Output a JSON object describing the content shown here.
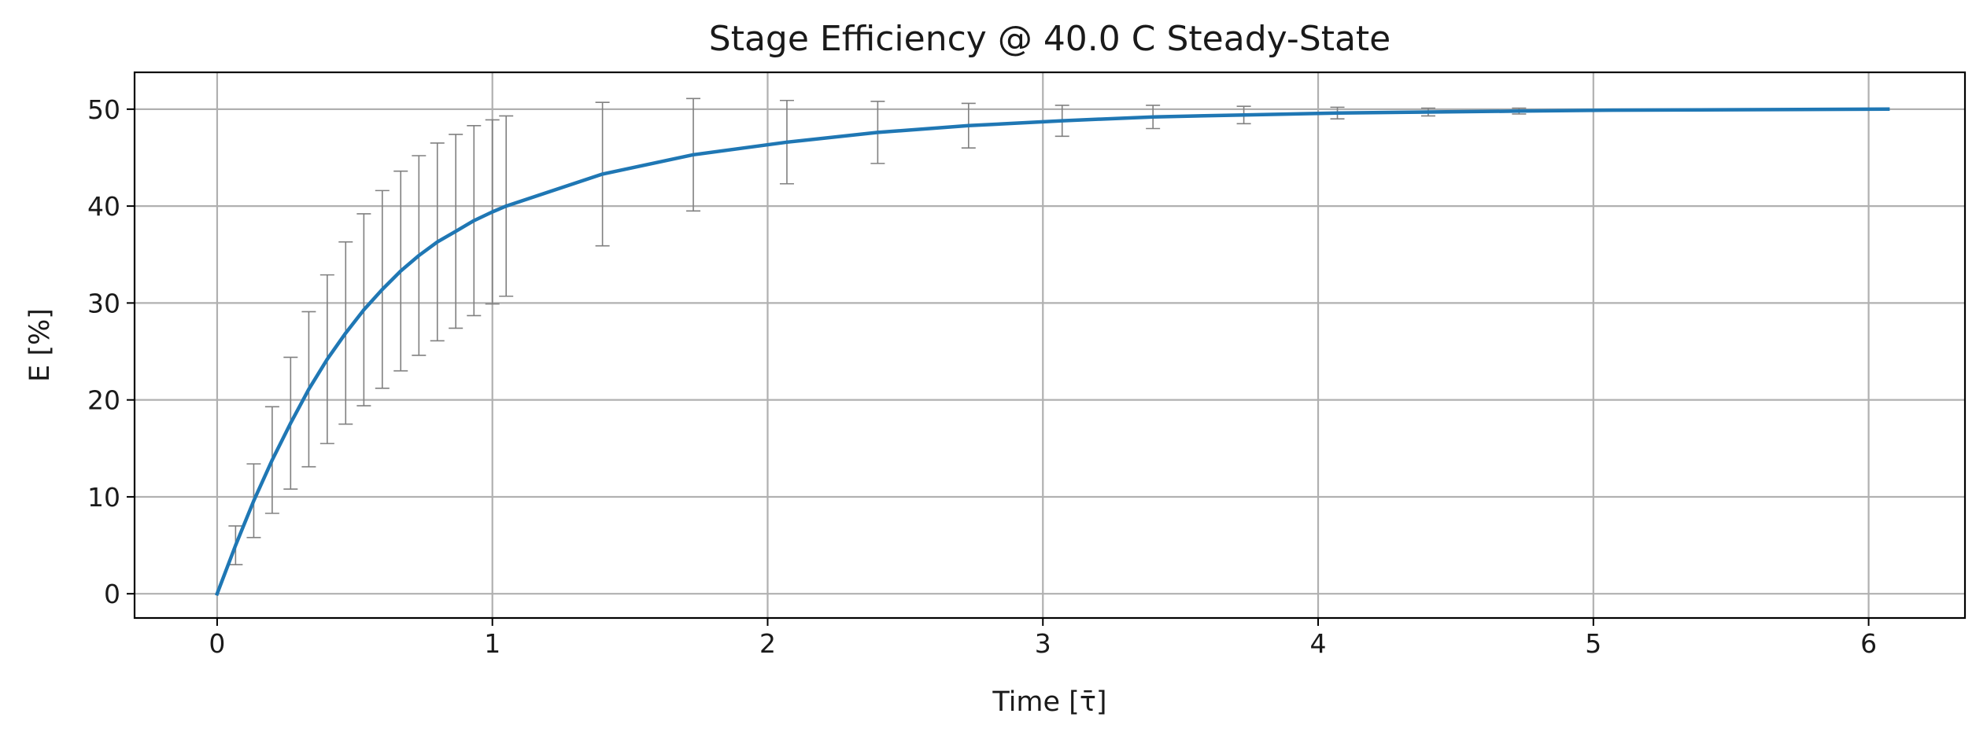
{
  "chart_data": {
    "type": "line",
    "title": "Stage Efficiency @ 40.0 C Steady-State",
    "xlabel": "Time [τ̄]",
    "ylabel": "E [%]",
    "xlim": [
      -0.3,
      6.35
    ],
    "ylim": [
      -2.5,
      53.8
    ],
    "x_ticks": [
      0,
      1,
      2,
      3,
      4,
      5,
      6
    ],
    "y_ticks": [
      0,
      10,
      20,
      30,
      40,
      50
    ],
    "grid": true,
    "legend": "none",
    "series": [
      {
        "line_color": "#1f77b4",
        "errorbar_color": "#808080",
        "x": [
          0.0,
          0.067,
          0.133,
          0.2,
          0.267,
          0.333,
          0.4,
          0.467,
          0.533,
          0.6,
          0.667,
          0.733,
          0.8,
          0.867,
          0.933,
          1.0,
          1.05,
          1.4,
          1.73,
          2.07,
          2.4,
          2.73,
          3.07,
          3.4,
          3.73,
          4.07,
          4.4,
          4.73,
          5.07,
          6.07
        ],
        "y": [
          0.0,
          5.0,
          9.6,
          13.8,
          17.6,
          21.1,
          24.2,
          26.9,
          29.3,
          31.4,
          33.3,
          34.9,
          36.3,
          37.4,
          38.5,
          39.4,
          40.0,
          43.3,
          45.3,
          46.6,
          47.6,
          48.3,
          48.8,
          49.2,
          49.4,
          49.6,
          49.7,
          49.8,
          49.9,
          50.0
        ],
        "error": [
          0.0,
          2.0,
          3.8,
          5.5,
          6.8,
          8.0,
          8.7,
          9.4,
          9.9,
          10.2,
          10.3,
          10.3,
          10.2,
          10.0,
          9.8,
          9.5,
          9.3,
          7.4,
          5.8,
          4.3,
          3.2,
          2.3,
          1.6,
          1.2,
          0.9,
          0.6,
          0.4,
          0.3,
          0.0,
          0.0
        ]
      }
    ]
  }
}
